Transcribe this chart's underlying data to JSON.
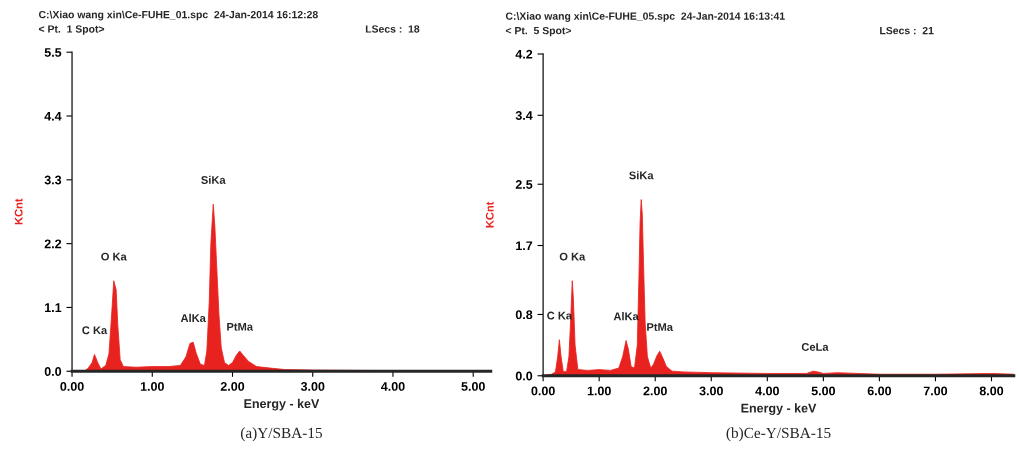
{
  "chart_data": [
    {
      "type": "area",
      "xlabel": "Energy - keV",
      "ylabel": "KCnt",
      "xlim": [
        0,
        5.22
      ],
      "ylim": [
        0,
        5.5
      ],
      "xticks": [
        {
          "value": 0,
          "label": "0.00"
        },
        {
          "value": 1,
          "label": "1.00"
        },
        {
          "value": 2,
          "label": "2.00"
        },
        {
          "value": 3,
          "label": "3.00"
        },
        {
          "value": 4,
          "label": "4.00"
        },
        {
          "value": 5,
          "label": "5.00"
        }
      ],
      "yticks": [
        {
          "value": 0,
          "label": "0.0"
        },
        1.1,
        2.2,
        3.3,
        4.4,
        5.5
      ],
      "series": [
        {
          "color": "#e8231f",
          "x": [
            0,
            0.15,
            0.2,
            0.25,
            0.28,
            0.32,
            0.36,
            0.42,
            0.46,
            0.49,
            0.52,
            0.55,
            0.57,
            0.6,
            0.64,
            0.8,
            1.0,
            1.2,
            1.35,
            1.42,
            1.47,
            1.51,
            1.55,
            1.6,
            1.65,
            1.68,
            1.71,
            1.73,
            1.76,
            1.78,
            1.8,
            1.83,
            1.86,
            1.9,
            1.95,
            2.0,
            2.05,
            2.09,
            2.13,
            2.2,
            2.3,
            2.5,
            2.65,
            3.0,
            4.0,
            5.0,
            5.22
          ],
          "values": [
            0,
            0,
            0.05,
            0.15,
            0.29,
            0.15,
            0.04,
            0.1,
            0.3,
            0.9,
            1.56,
            1.4,
            0.8,
            0.2,
            0.08,
            0.07,
            0.08,
            0.08,
            0.1,
            0.25,
            0.48,
            0.5,
            0.3,
            0.12,
            0.1,
            0.35,
            1.2,
            2.2,
            2.88,
            2.5,
            1.9,
            1.0,
            0.4,
            0.15,
            0.1,
            0.15,
            0.28,
            0.35,
            0.28,
            0.17,
            0.08,
            0.05,
            0.03,
            0.02,
            0.01,
            0.01,
            0.01
          ]
        }
      ],
      "annotations": [
        "C:\\Xiao wang xin\\Ce-FUHE_01.spc  24-Jan-2014 16:12:28",
        "< Pt.  1 Spot>",
        "LSecs :  18",
        {
          "text": "C Ka",
          "x": 0.28,
          "y": 0.29
        },
        {
          "text": "O Ka",
          "x": 0.52,
          "y": 1.56
        },
        {
          "text": "AlKa",
          "x": 1.51,
          "y": 0.5
        },
        {
          "text": "SiKa",
          "x": 1.76,
          "y": 2.88
        },
        {
          "text": "PtMa",
          "x": 2.09,
          "y": 0.35
        },
        "(a)Y/SBA-15"
      ]
    },
    {
      "type": "area",
      "xlabel": "Energy - keV",
      "ylabel": "KCnt",
      "xlim": [
        0,
        8.4
      ],
      "ylim": [
        0,
        4.2
      ],
      "xticks": [
        {
          "value": 0,
          "label": "0.00"
        },
        {
          "value": 1,
          "label": "1.00"
        },
        {
          "value": 2,
          "label": "2.00"
        },
        {
          "value": 3,
          "label": "3.00"
        },
        {
          "value": 4,
          "label": "4.00"
        },
        {
          "value": 5,
          "label": "5.00"
        },
        {
          "value": 6,
          "label": "6.00"
        },
        {
          "value": 7,
          "label": "7.00"
        },
        {
          "value": 8,
          "label": "8.00"
        }
      ],
      "yticks": [
        {
          "value": 0,
          "label": "0.0"
        },
        0.8,
        1.7,
        2.5,
        3.4,
        4.2
      ],
      "series": [
        {
          "color": "#e8231f",
          "x": [
            0,
            0.15,
            0.22,
            0.26,
            0.29,
            0.32,
            0.36,
            0.42,
            0.46,
            0.49,
            0.52,
            0.54,
            0.57,
            0.62,
            0.8,
            1.0,
            1.2,
            1.35,
            1.42,
            1.48,
            1.52,
            1.57,
            1.63,
            1.68,
            1.71,
            1.73,
            1.75,
            1.77,
            1.79,
            1.82,
            1.86,
            1.92,
            1.97,
            2.03,
            2.08,
            2.13,
            2.2,
            2.3,
            2.5,
            3.0,
            4.0,
            4.7,
            4.82,
            4.9,
            5.0,
            5.25,
            6.0,
            7.0,
            8.0,
            8.4
          ],
          "values": [
            0,
            0.02,
            0.05,
            0.25,
            0.47,
            0.25,
            0.05,
            0.06,
            0.25,
            0.7,
            1.24,
            1.0,
            0.4,
            0.08,
            0.07,
            0.08,
            0.07,
            0.1,
            0.25,
            0.46,
            0.35,
            0.12,
            0.1,
            0.4,
            1.3,
            2.0,
            2.3,
            2.1,
            1.5,
            0.7,
            0.25,
            0.1,
            0.15,
            0.26,
            0.32,
            0.24,
            0.12,
            0.06,
            0.05,
            0.04,
            0.03,
            0.03,
            0.06,
            0.05,
            0.03,
            0.04,
            0.02,
            0.02,
            0.03,
            0.02
          ]
        }
      ],
      "annotations": [
        "C:\\Xiao wang xin\\Ce-FUHE_05.spc  24-Jan-2014 16:13:41",
        "< Pt.  5 Spot>",
        "LSecs :  21",
        {
          "text": "C Ka",
          "x": 0.29,
          "y": 0.47
        },
        {
          "text": "O Ka",
          "x": 0.52,
          "y": 1.24
        },
        {
          "text": "AlKa",
          "x": 1.48,
          "y": 0.46
        },
        {
          "text": "SiKa",
          "x": 1.75,
          "y": 2.3
        },
        {
          "text": "PtMa",
          "x": 2.08,
          "y": 0.32
        },
        {
          "text": "CeLa",
          "x": 4.85,
          "y": 0.06
        },
        "(b)Ce-Y/SBA-15"
      ]
    }
  ]
}
